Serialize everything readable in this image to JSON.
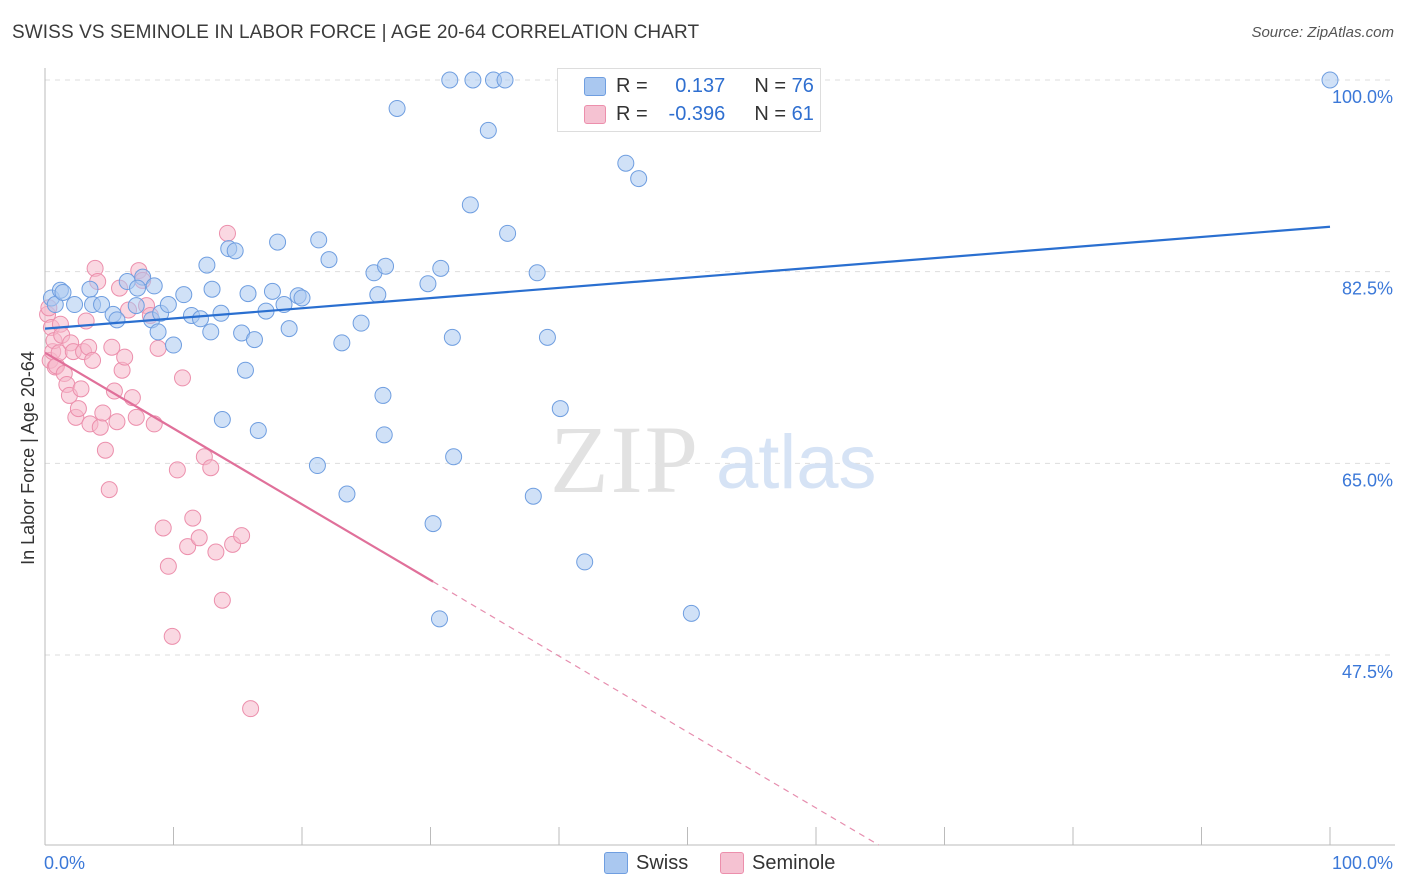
{
  "title": "SWISS VS SEMINOLE IN LABOR FORCE | AGE 20-64 CORRELATION CHART",
  "source": "Source: ZipAtlas.com",
  "watermark": {
    "zip": "ZIP",
    "atlas": "atlas"
  },
  "colors": {
    "swiss_fill": "#aac8f0",
    "swiss_stroke": "#6f9ee0",
    "swiss_line": "#2a6fd0",
    "seminole_fill": "#f5b8cb",
    "seminole_stroke": "#ec8fac",
    "seminole_line": "#e0709a",
    "tick_label": "#3b78d8",
    "grid": "#dddddd"
  },
  "legend": {
    "swiss": {
      "r_label": "R =",
      "r_value": "0.137",
      "n_label": "N =",
      "n_value": "76"
    },
    "seminole": {
      "r_label": "R =",
      "r_value": "-0.396",
      "n_label": "N =",
      "n_value": "61"
    }
  },
  "bottom_legend": {
    "swiss": "Swiss",
    "seminole": "Seminole"
  },
  "chart_data": {
    "type": "scatter",
    "title": "SWISS VS SEMINOLE IN LABOR FORCE | AGE 20-64 CORRELATION CHART",
    "xlabel": "",
    "ylabel": "In Labor Force | Age 20-64",
    "xlim": [
      0,
      100
    ],
    "ylim": [
      28,
      102
    ],
    "x_tick_labels": [
      "0.0%",
      "100.0%"
    ],
    "y_ticks": [
      47.5,
      65.0,
      82.5,
      100.0
    ],
    "y_tick_labels": [
      "47.5%",
      "65.0%",
      "82.5%",
      "100.0%"
    ],
    "grid": true,
    "legend_position": "top-center",
    "series": [
      {
        "name": "Swiss",
        "trend": {
          "x": [
            0,
            100
          ],
          "y": [
            77.3,
            86.6
          ],
          "style": "solid"
        },
        "points": [
          [
            0.5,
            80.1
          ],
          [
            0.8,
            79.5
          ],
          [
            1.2,
            80.8
          ],
          [
            1.4,
            80.6
          ],
          [
            2.3,
            79.5
          ],
          [
            3.5,
            80.9
          ],
          [
            3.7,
            79.5
          ],
          [
            4.4,
            79.5
          ],
          [
            5.3,
            78.6
          ],
          [
            5.6,
            78.1
          ],
          [
            6.4,
            81.6
          ],
          [
            7.1,
            79.4
          ],
          [
            7.6,
            82.0
          ],
          [
            7.2,
            81.0
          ],
          [
            8.3,
            78.1
          ],
          [
            8.5,
            81.2
          ],
          [
            9.0,
            78.7
          ],
          [
            8.8,
            77.0
          ],
          [
            9.6,
            79.5
          ],
          [
            10.0,
            75.8
          ],
          [
            10.8,
            80.4
          ],
          [
            11.4,
            78.5
          ],
          [
            12.1,
            78.2
          ],
          [
            12.6,
            83.1
          ],
          [
            13.0,
            80.9
          ],
          [
            13.7,
            78.7
          ],
          [
            12.9,
            77.0
          ],
          [
            13.8,
            69.0
          ],
          [
            14.3,
            84.6
          ],
          [
            14.8,
            84.4
          ],
          [
            15.3,
            76.9
          ],
          [
            15.6,
            73.5
          ],
          [
            15.8,
            80.5
          ],
          [
            16.3,
            76.3
          ],
          [
            16.6,
            68.0
          ],
          [
            17.2,
            78.9
          ],
          [
            17.7,
            80.7
          ],
          [
            18.1,
            85.2
          ],
          [
            18.6,
            79.5
          ],
          [
            19.0,
            77.3
          ],
          [
            19.7,
            80.3
          ],
          [
            20.0,
            80.1
          ],
          [
            21.2,
            64.8
          ],
          [
            21.3,
            85.4
          ],
          [
            22.1,
            83.6
          ],
          [
            23.1,
            76.0
          ],
          [
            23.5,
            62.2
          ],
          [
            24.6,
            77.8
          ],
          [
            25.6,
            82.4
          ],
          [
            25.9,
            80.4
          ],
          [
            26.3,
            71.2
          ],
          [
            26.4,
            67.6
          ],
          [
            26.5,
            83.0
          ],
          [
            27.4,
            97.4
          ],
          [
            29.8,
            81.4
          ],
          [
            30.2,
            59.5
          ],
          [
            30.8,
            82.8
          ],
          [
            31.7,
            76.5
          ],
          [
            31.8,
            65.6
          ],
          [
            33.1,
            88.6
          ],
          [
            34.5,
            95.4
          ],
          [
            36.0,
            86.0
          ],
          [
            38.0,
            62.0
          ],
          [
            38.3,
            82.4
          ],
          [
            39.1,
            76.5
          ],
          [
            40.1,
            70.0
          ],
          [
            42.0,
            56.0
          ],
          [
            45.2,
            92.4
          ],
          [
            46.2,
            91.0
          ],
          [
            50.3,
            51.3
          ],
          [
            30.7,
            50.8
          ],
          [
            33.3,
            100.0
          ],
          [
            34.9,
            100.0
          ],
          [
            35.8,
            100.0
          ],
          [
            31.5,
            100.0
          ],
          [
            100.0,
            100.0
          ]
        ]
      },
      {
        "name": "Seminole",
        "trend": {
          "x": [
            0,
            30.2
          ],
          "y": [
            75.1,
            54.2
          ],
          "style": "solid"
        },
        "trend_extension": {
          "x": [
            30.2,
            100
          ],
          "y": [
            54.2,
            5.8
          ],
          "style": "dashed"
        },
        "points": [
          [
            0.2,
            78.6
          ],
          [
            0.3,
            79.2
          ],
          [
            0.4,
            74.4
          ],
          [
            0.5,
            77.4
          ],
          [
            0.6,
            75.2
          ],
          [
            0.7,
            76.2
          ],
          [
            0.8,
            73.8
          ],
          [
            0.9,
            73.9
          ],
          [
            1.1,
            75.1
          ],
          [
            1.2,
            77.7
          ],
          [
            1.3,
            76.7
          ],
          [
            1.5,
            73.2
          ],
          [
            1.7,
            72.2
          ],
          [
            1.9,
            71.2
          ],
          [
            2.0,
            76.0
          ],
          [
            2.2,
            75.2
          ],
          [
            2.4,
            69.2
          ],
          [
            2.6,
            70.0
          ],
          [
            2.8,
            71.8
          ],
          [
            3.0,
            75.2
          ],
          [
            3.2,
            78.0
          ],
          [
            3.4,
            75.6
          ],
          [
            3.5,
            68.6
          ],
          [
            3.7,
            74.4
          ],
          [
            3.9,
            82.8
          ],
          [
            4.1,
            81.6
          ],
          [
            4.3,
            68.3
          ],
          [
            4.5,
            69.6
          ],
          [
            4.7,
            66.2
          ],
          [
            5.0,
            62.6
          ],
          [
            5.2,
            75.6
          ],
          [
            5.4,
            71.6
          ],
          [
            5.6,
            68.8
          ],
          [
            5.8,
            81.0
          ],
          [
            6.0,
            73.5
          ],
          [
            6.2,
            74.7
          ],
          [
            6.5,
            79.0
          ],
          [
            6.8,
            71.0
          ],
          [
            7.1,
            69.2
          ],
          [
            7.3,
            82.6
          ],
          [
            7.6,
            81.7
          ],
          [
            7.9,
            79.4
          ],
          [
            8.2,
            78.5
          ],
          [
            8.5,
            68.6
          ],
          [
            8.8,
            75.5
          ],
          [
            9.2,
            59.1
          ],
          [
            9.6,
            55.6
          ],
          [
            9.9,
            49.2
          ],
          [
            10.3,
            64.4
          ],
          [
            10.7,
            72.8
          ],
          [
            11.1,
            57.4
          ],
          [
            11.5,
            60.0
          ],
          [
            12.0,
            58.2
          ],
          [
            12.4,
            65.6
          ],
          [
            12.9,
            64.6
          ],
          [
            13.3,
            56.9
          ],
          [
            13.8,
            52.5
          ],
          [
            14.2,
            86.0
          ],
          [
            14.6,
            57.6
          ],
          [
            15.3,
            58.4
          ],
          [
            16.0,
            42.6
          ]
        ]
      }
    ]
  }
}
